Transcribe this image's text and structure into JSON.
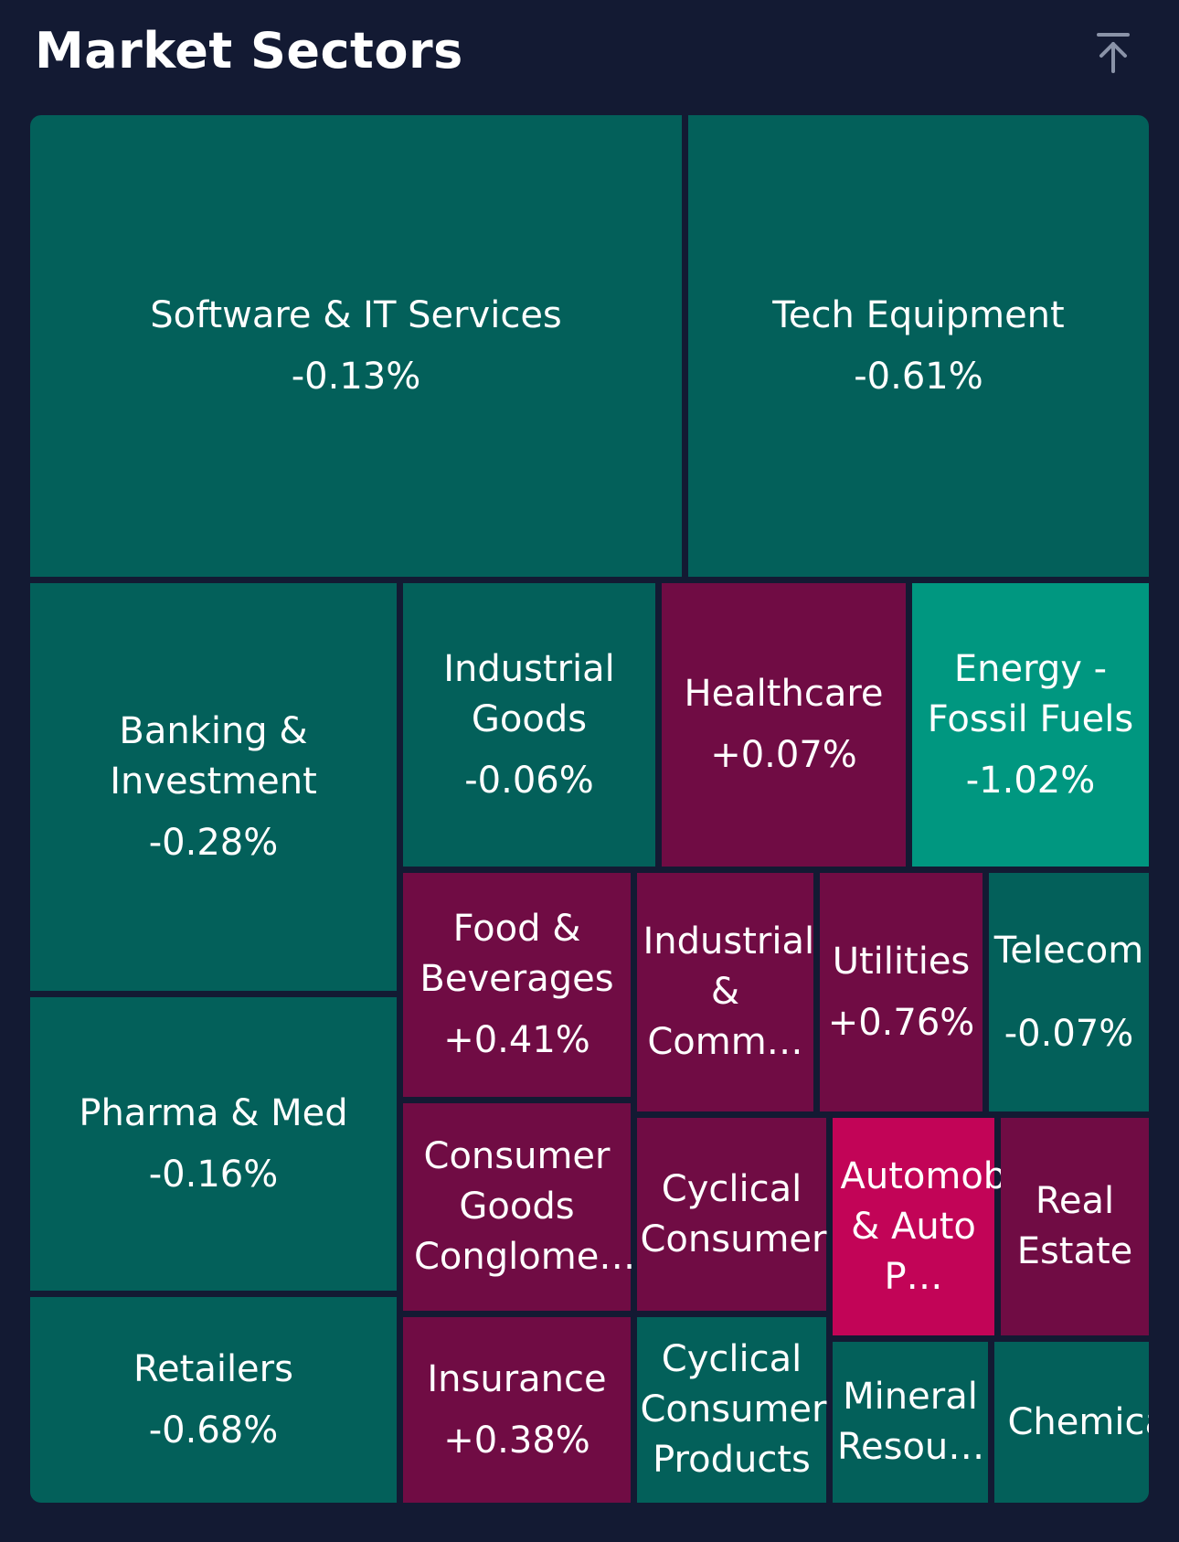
{
  "header": {
    "title": "Market Sectors"
  },
  "icons": {
    "scroll_top": "arrow-up-to-line-icon"
  },
  "colors": {
    "background": "#131a33",
    "tile_dark_green": "#03605a",
    "tile_bright_green": "#009780",
    "tile_dark_red": "#700c44",
    "tile_bright_red": "#c20457"
  },
  "sectors": [
    {
      "name": "Software & IT Services",
      "change": "-0.13%"
    },
    {
      "name": "Tech Equipment",
      "change": "-0.61%"
    },
    {
      "name": "Banking & Investment",
      "change": "-0.28%"
    },
    {
      "name": "Industrial Goods",
      "change": "-0.06%"
    },
    {
      "name": "Healthcare",
      "change": "+0.07%"
    },
    {
      "name": "Energy - Fossil Fuels",
      "change": "-1.02%"
    },
    {
      "name": "Food & Beverages",
      "change": "+0.41%"
    },
    {
      "name": "Industrial & Comm…",
      "change": ""
    },
    {
      "name": "Utilities",
      "change": "+0.76%"
    },
    {
      "name": "Telecom",
      "change": "-0.07%"
    },
    {
      "name": "Pharma & Med",
      "change": "-0.16%"
    },
    {
      "name": "Consumer Goods Conglome…",
      "change": ""
    },
    {
      "name": "Cyclical Consumer",
      "change": ""
    },
    {
      "name": "Automobiles & Auto P…",
      "change": ""
    },
    {
      "name": "Real Estate",
      "change": ""
    },
    {
      "name": "Retailers",
      "change": "-0.68%"
    },
    {
      "name": "Insurance",
      "change": "+0.38%"
    },
    {
      "name": "Cyclical Consumer Products",
      "change": ""
    },
    {
      "name": "Mineral Resou…",
      "change": ""
    },
    {
      "name": "Chemicals",
      "change": ""
    }
  ]
}
